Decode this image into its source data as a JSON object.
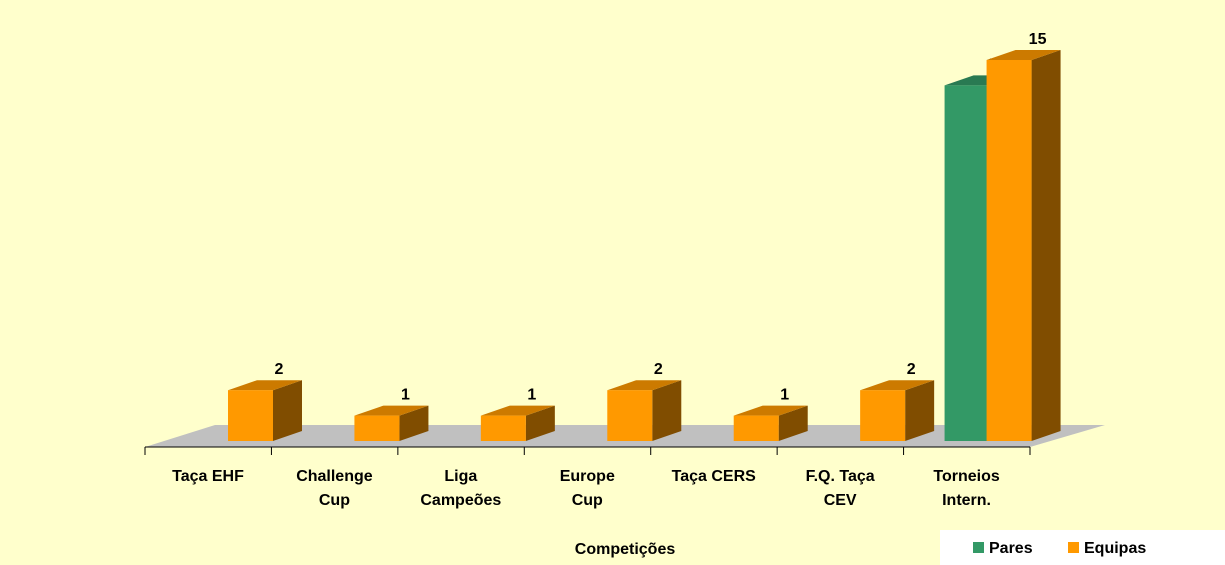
{
  "chart_data": {
    "type": "bar3d",
    "x_label": "Competições",
    "categories": [
      "Taça EHF",
      "Challenge\nCup",
      "Liga\nCampeões",
      "Europe\nCup",
      "Taça CERS",
      "F.Q. Taça\nCEV",
      "Torneios\nIntern."
    ],
    "series": [
      {
        "name": "Pares",
        "color": "#339966",
        "values": [
          null,
          null,
          null,
          null,
          null,
          null,
          14
        ]
      },
      {
        "name": "Equipas",
        "color": "#ff9900",
        "values": [
          2,
          1,
          1,
          2,
          1,
          2,
          15
        ]
      }
    ],
    "legend": "bottom-right"
  }
}
